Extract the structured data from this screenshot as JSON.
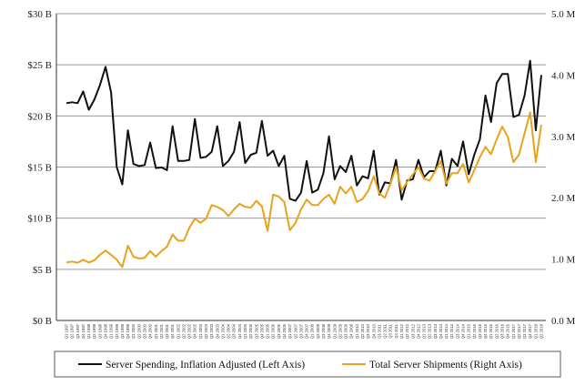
{
  "chart_data": {
    "type": "line",
    "title": "",
    "left_axis": {
      "ticks": [
        "$0 B",
        "$5 B",
        "$10 B",
        "$15 B",
        "$20 B",
        "$25 B",
        "$30 B"
      ],
      "ylim": [
        0,
        30
      ],
      "unit": "billion USD"
    },
    "right_axis": {
      "ticks": [
        "0.0 M",
        "1.0 M",
        "2.0 M",
        "3.0 M",
        "4.0 M",
        "5.0 M"
      ],
      "ylim": [
        0,
        5
      ],
      "unit": "million units"
    },
    "grid": true,
    "legend_placement": "bottom",
    "x": [
      "Q1 1997",
      "Q2 1997",
      "Q3 1997",
      "Q4 1997",
      "Q1 1998",
      "Q2 1998",
      "Q3 1998",
      "Q4 1998",
      "Q1 1999",
      "Q2 1999",
      "Q3 1999",
      "Q4 1999",
      "Q1 2000",
      "Q2 2000",
      "Q3 2000",
      "Q4 2000",
      "Q1 2001",
      "Q2 2001",
      "Q3 2001",
      "Q4 2001",
      "Q1 2002",
      "Q2 2002",
      "Q3 2002",
      "Q4 2002",
      "Q1 2003",
      "Q2 2003",
      "Q3 2003",
      "Q4 2003",
      "Q1 2004",
      "Q2 2004",
      "Q3 2004",
      "Q4 2004",
      "Q1 2005",
      "Q2 2005",
      "Q3 2005",
      "Q4 2005",
      "Q1 2006",
      "Q2 2006",
      "Q3 2006",
      "Q4 2006",
      "Q1 2007",
      "Q2 2007",
      "Q3 2007",
      "Q4 2007",
      "Q1 2008",
      "Q2 2008",
      "Q3 2008",
      "Q4 2008",
      "Q1 2009",
      "Q2 2009",
      "Q3 2009",
      "Q4 2009",
      "Q1 2010",
      "Q2 2010",
      "Q3 2010",
      "Q4 2010",
      "Q1 2011",
      "Q2 2011",
      "Q3 2011",
      "Q4 2011",
      "Q1 2012",
      "Q2 2012",
      "Q3 2012",
      "Q4 2012",
      "Q1 2013",
      "Q2 2013",
      "Q3 2013",
      "Q4 2013",
      "Q1 2014",
      "Q2 2014",
      "Q3 2014",
      "Q4 2014",
      "Q1 2015",
      "Q2 2015",
      "Q3 2015",
      "Q4 2015",
      "Q1 2016",
      "Q2 2016",
      "Q3 2016",
      "Q4 2016",
      "Q1 2017",
      "Q2 2017",
      "Q3 2017",
      "Q4 2017",
      "Q1 2018",
      "Q2 2018"
    ],
    "series": [
      {
        "name": "Server Spending, Inflation Adjusted (Left Axis)",
        "axis": "left",
        "color": "#111111",
        "values": [
          21.25,
          21.34,
          21.25,
          22.4,
          20.6,
          21.6,
          23.0,
          24.8,
          22.3,
          15.0,
          13.3,
          18.6,
          15.3,
          15.1,
          15.2,
          17.4,
          14.9,
          14.96,
          14.7,
          19.0,
          15.6,
          15.6,
          15.7,
          19.7,
          15.9,
          16.0,
          16.5,
          19.0,
          15.1,
          15.6,
          16.5,
          19.4,
          15.4,
          16.2,
          16.4,
          19.5,
          16.1,
          16.6,
          15.1,
          16.1,
          11.9,
          11.7,
          12.5,
          15.6,
          12.5,
          12.8,
          14.4,
          18.0,
          13.8,
          15.1,
          14.5,
          16.1,
          13.2,
          14.1,
          13.9,
          16.6,
          12.3,
          13.5,
          13.4,
          15.7,
          11.8,
          13.7,
          13.8,
          15.7,
          14.0,
          14.6,
          14.6,
          16.6,
          13.2,
          15.8,
          15.1,
          17.5,
          14.3,
          16.2,
          17.7,
          22.0,
          19.4,
          23.2,
          24.1,
          24.1,
          19.9,
          20.1,
          22.0,
          25.4,
          18.6,
          24.0
        ]
      },
      {
        "name": "Total Server Shipments (Right Axis)",
        "axis": "right",
        "color": "#E8A21C",
        "values": [
          0.945,
          0.96,
          0.94,
          0.99,
          0.945,
          0.98,
          1.07,
          1.14,
          1.07,
          0.99,
          0.87,
          1.22,
          1.04,
          1.01,
          1.02,
          1.13,
          1.04,
          1.13,
          1.2,
          1.4,
          1.3,
          1.3,
          1.51,
          1.66,
          1.59,
          1.66,
          1.88,
          1.85,
          1.8,
          1.7,
          1.81,
          1.9,
          1.85,
          1.84,
          1.95,
          1.86,
          1.46,
          2.05,
          2.02,
          1.93,
          1.47,
          1.59,
          1.81,
          1.97,
          1.88,
          1.88,
          1.98,
          2.05,
          1.9,
          2.18,
          2.07,
          2.18,
          1.93,
          1.98,
          2.11,
          2.35,
          2.07,
          2.0,
          2.23,
          2.5,
          2.12,
          2.26,
          2.38,
          2.5,
          2.31,
          2.28,
          2.43,
          2.6,
          2.23,
          2.4,
          2.4,
          2.55,
          2.25,
          2.45,
          2.66,
          2.83,
          2.71,
          2.95,
          3.16,
          2.99,
          2.58,
          2.7,
          3.05,
          3.39,
          2.58,
          3.19
        ]
      }
    ]
  }
}
